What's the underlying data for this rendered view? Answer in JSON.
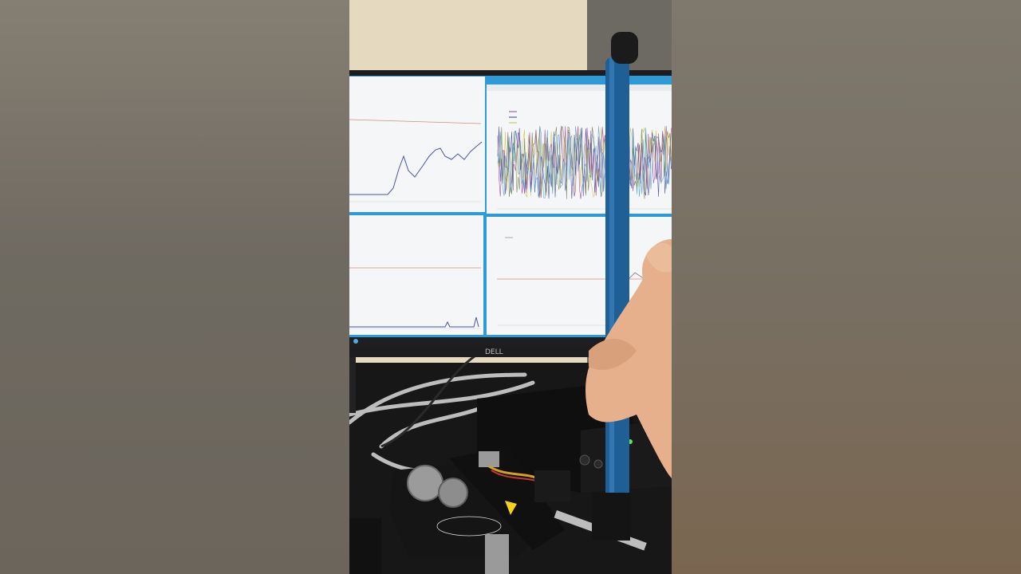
{
  "monitor": {
    "brand": "DELL"
  },
  "screen": {
    "panels": [
      {
        "id": "top-left",
        "trace_color": "#4a55a0",
        "ref_line_color": "#d98a7a"
      },
      {
        "id": "top-right",
        "trace_colors": [
          "#c9c23a",
          "#3b3f9a",
          "#9b3a9a",
          "#6d7a3a",
          "#4a9bd4"
        ]
      },
      {
        "id": "bottom-left",
        "ref_line_color": "#d98a7a"
      },
      {
        "id": "bottom-right",
        "ref_line_color": "#d98a7a"
      }
    ],
    "frame_color": "#2f9ad8"
  },
  "objects": {
    "rod": {
      "color": "#1f5f96",
      "cap_color": "#1b1b1b"
    },
    "hand": {
      "skin_color": "#e6b08c"
    },
    "apparatus_box": {
      "color": "#111111"
    },
    "turntable": {
      "color": "#151515"
    }
  }
}
